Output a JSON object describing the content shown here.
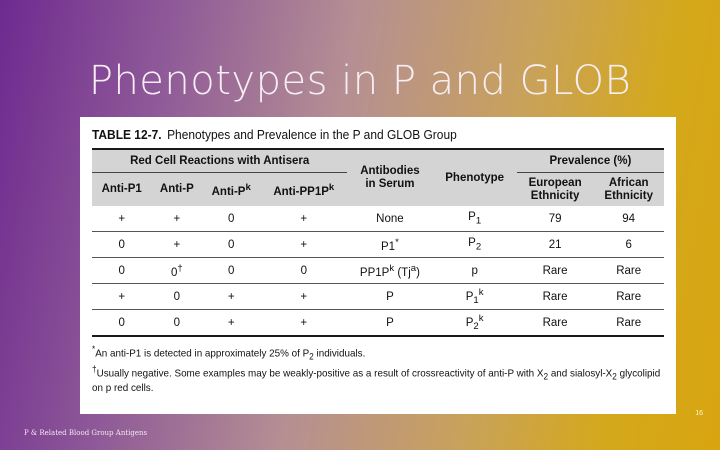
{
  "slide": {
    "title": "Phenotypes in P and GLOB",
    "footer": "P & Related Blood Group Antigens",
    "page_number": "16"
  },
  "table": {
    "label": "TABLE 12-7.",
    "caption": "Phenotypes and Prevalence in the P and GLOB Group",
    "group_headers": {
      "red_cell": "Red Cell Reactions with Antisera",
      "prevalence": "Prevalence (%)"
    },
    "col_headers": {
      "anti_p1": "Anti-P1",
      "anti_p": "Anti-P",
      "anti_pk": "Anti-P",
      "anti_pk_sup": "k",
      "anti_pp1pk": "Anti-PP1P",
      "anti_pp1pk_sup": "k",
      "antibodies_1": "Antibodies",
      "antibodies_2": "in Serum",
      "phenotype": "Phenotype",
      "european_1": "European",
      "european_2": "Ethnicity",
      "african_1": "African",
      "african_2": "Ethnicity"
    },
    "rows": [
      {
        "anti_p1": "+",
        "anti_p": "+",
        "anti_pk": "0",
        "anti_pp1pk": "+",
        "antibodies": "None",
        "antibodies_sup": "",
        "antibodies_tail": "",
        "phenotype": "P",
        "phen_sub": "1",
        "phen_sup": "",
        "european": "79",
        "african": "94"
      },
      {
        "anti_p1": "0",
        "anti_p": "+",
        "anti_pk": "0",
        "anti_pp1pk": "+",
        "antibodies": "P1",
        "antibodies_sup": "*",
        "antibodies_tail": "",
        "phenotype": "P",
        "phen_sub": "2",
        "phen_sup": "",
        "european": "21",
        "african": "6"
      },
      {
        "anti_p1": "0",
        "anti_p": "0",
        "anti_p_sup": "†",
        "anti_pk": "0",
        "anti_pp1pk": "0",
        "antibodies": "PP1P",
        "antibodies_sup": "k",
        "antibodies_tail": " (Tj",
        "antibodies_tail_sup": "a",
        "antibodies_close": ")",
        "phenotype": "p",
        "phen_sub": "",
        "phen_sup": "",
        "european": "Rare",
        "african": "Rare"
      },
      {
        "anti_p1": "+",
        "anti_p": "0",
        "anti_pk": "+",
        "anti_pp1pk": "+",
        "antibodies": "P",
        "antibodies_sup": "",
        "antibodies_tail": "",
        "phenotype": "P",
        "phen_sub": "1",
        "phen_sup": "k",
        "european": "Rare",
        "african": "Rare"
      },
      {
        "anti_p1": "0",
        "anti_p": "0",
        "anti_pk": "+",
        "anti_pp1pk": "+",
        "antibodies": "P",
        "antibodies_sup": "",
        "antibodies_tail": "",
        "phenotype": "P",
        "phen_sub": "2",
        "phen_sup": "k",
        "european": "Rare",
        "african": "Rare"
      }
    ],
    "footnotes": {
      "note1_mark": "*",
      "note1_a": "An anti-P1 is detected in approximately 25% of P",
      "note1_sub": "2",
      "note1_b": " individuals.",
      "note2_mark": "†",
      "note2_a": "Usually negative. Some examples may be weakly-positive as a result of crossreactivity of anti-P with X",
      "note2_sub1": "2",
      "note2_b": " and sialosyl-X",
      "note2_sub2": "2",
      "note2_c": " glycolipid on p red cells."
    }
  }
}
